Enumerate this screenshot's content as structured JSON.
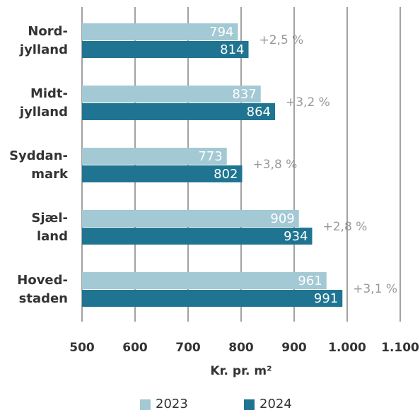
{
  "chart_data": {
    "type": "bar",
    "orientation": "horizontal",
    "categories": [
      [
        "Nord-",
        "jylland"
      ],
      [
        "Midt-",
        "jylland"
      ],
      [
        "Syddan-",
        "mark"
      ],
      [
        "Sjæl-",
        "land"
      ],
      [
        "Hoved-",
        "staden"
      ]
    ],
    "series": [
      {
        "name": "2023",
        "color": "#a3c9d4",
        "values": [
          794,
          837,
          773,
          909,
          961
        ]
      },
      {
        "name": "2024",
        "color": "#1f7591",
        "values": [
          814,
          864,
          802,
          934,
          991
        ]
      }
    ],
    "annotations": [
      "+2,5 %",
      "+3,2 %",
      "+3,8 %",
      "+2,8 %",
      "+3,1 %"
    ],
    "xlabel": "Kr. pr. m²",
    "xlim": [
      500,
      1100
    ],
    "xticks": [
      500,
      600,
      700,
      800,
      900,
      {
        "value": 1000,
        "label": "1.000"
      },
      {
        "value": 1100,
        "label": "1.100"
      }
    ],
    "grid": true,
    "legend": "bottom"
  }
}
